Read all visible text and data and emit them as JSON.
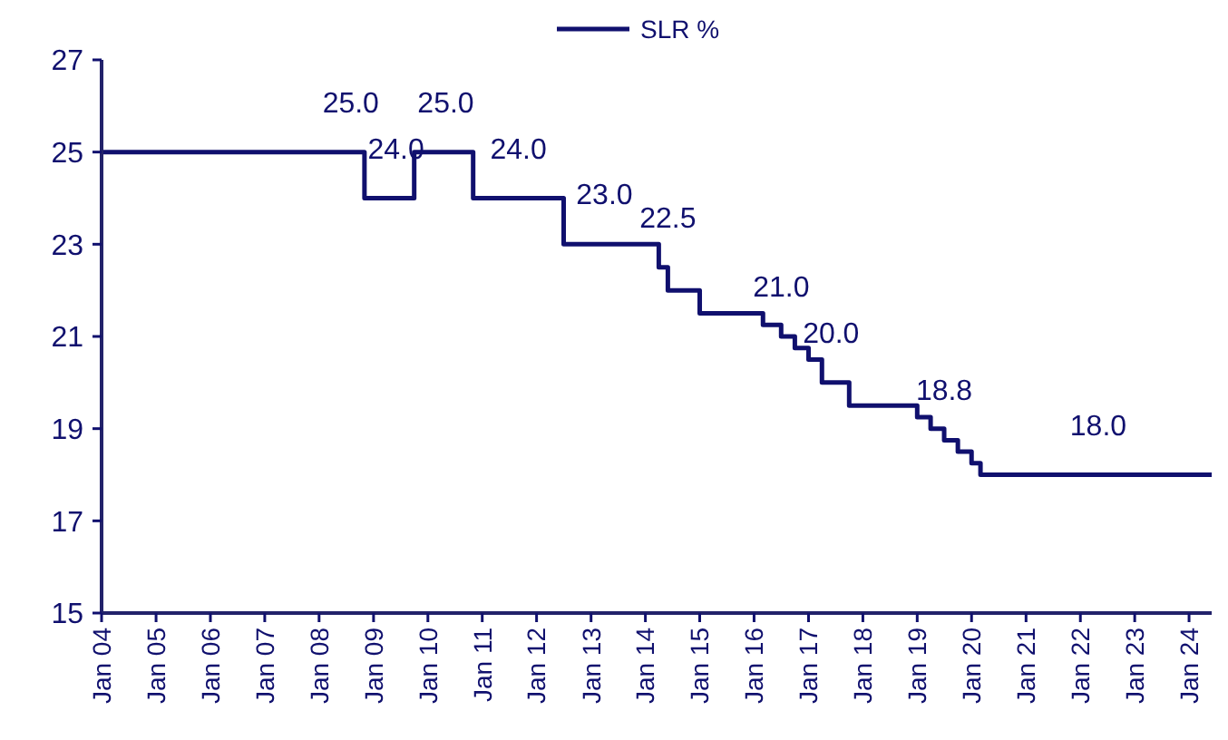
{
  "chart_data": {
    "type": "step",
    "x": [
      "2004-01",
      "2008-11",
      "2009-10",
      "2010-11",
      "2012-07",
      "2014-04",
      "2014-06",
      "2015-01",
      "2016-03",
      "2016-07",
      "2016-10",
      "2017-01",
      "2017-04",
      "2017-10",
      "2019-01",
      "2019-04",
      "2019-07",
      "2019-10",
      "2020-01",
      "2020-03",
      "2024-06"
    ],
    "series": [
      {
        "name": "SLR %",
        "color": "#10106e",
        "values": [
          25,
          24,
          25,
          24,
          23,
          22.5,
          22,
          21.5,
          21.25,
          21,
          20.75,
          20.5,
          20,
          19.5,
          19.25,
          19,
          18.75,
          18.5,
          18.25,
          18,
          18
        ]
      }
    ],
    "xlim": [
      "2004-01",
      "2024-06"
    ],
    "xticks": [
      {
        "value": "2004-01",
        "label": "Jan 04"
      },
      {
        "value": "2005-01",
        "label": "Jan 05"
      },
      {
        "value": "2006-01",
        "label": "Jan 06"
      },
      {
        "value": "2007-01",
        "label": "Jan 07"
      },
      {
        "value": "2008-01",
        "label": "Jan 08"
      },
      {
        "value": "2009-01",
        "label": "Jan 09"
      },
      {
        "value": "2010-01",
        "label": "Jan 10"
      },
      {
        "value": "2011-01",
        "label": "Jan 11"
      },
      {
        "value": "2012-01",
        "label": "Jan 12"
      },
      {
        "value": "2013-01",
        "label": "Jan 13"
      },
      {
        "value": "2014-01",
        "label": "Jan 14"
      },
      {
        "value": "2015-01",
        "label": "Jan 15"
      },
      {
        "value": "2016-01",
        "label": "Jan 16"
      },
      {
        "value": "2017-01",
        "label": "Jan 17"
      },
      {
        "value": "2018-01",
        "label": "Jan 18"
      },
      {
        "value": "2019-01",
        "label": "Jan 19"
      },
      {
        "value": "2020-01",
        "label": "Jan 20"
      },
      {
        "value": "2021-01",
        "label": "Jan 21"
      },
      {
        "value": "2022-01",
        "label": "Jan 22"
      },
      {
        "value": "2023-01",
        "label": "Jan 23"
      },
      {
        "value": "2024-01",
        "label": "Jan 24"
      }
    ],
    "ylim": [
      15,
      27
    ],
    "yticks": [
      15,
      17,
      19,
      21,
      23,
      25,
      27
    ],
    "legend": "top",
    "annotations": [
      {
        "text": "25.0",
        "x": "2008-08",
        "y": 25
      },
      {
        "text": "24.0",
        "x": "2009-06",
        "y": 24
      },
      {
        "text": "25.0",
        "x": "2010-05",
        "y": 25
      },
      {
        "text": "24.0",
        "x": "2011-09",
        "y": 24
      },
      {
        "text": "23.0",
        "x": "2013-04",
        "y": 23
      },
      {
        "text": "22.5",
        "x": "2014-06",
        "y": 22.5
      },
      {
        "text": "21.0",
        "x": "2016-07",
        "y": 21
      },
      {
        "text": "20.0",
        "x": "2017-06",
        "y": 20
      },
      {
        "text": "18.8",
        "x": "2019-07",
        "y": 18.75
      },
      {
        "text": "18.0",
        "x": "2022-05",
        "y": 18
      }
    ]
  }
}
